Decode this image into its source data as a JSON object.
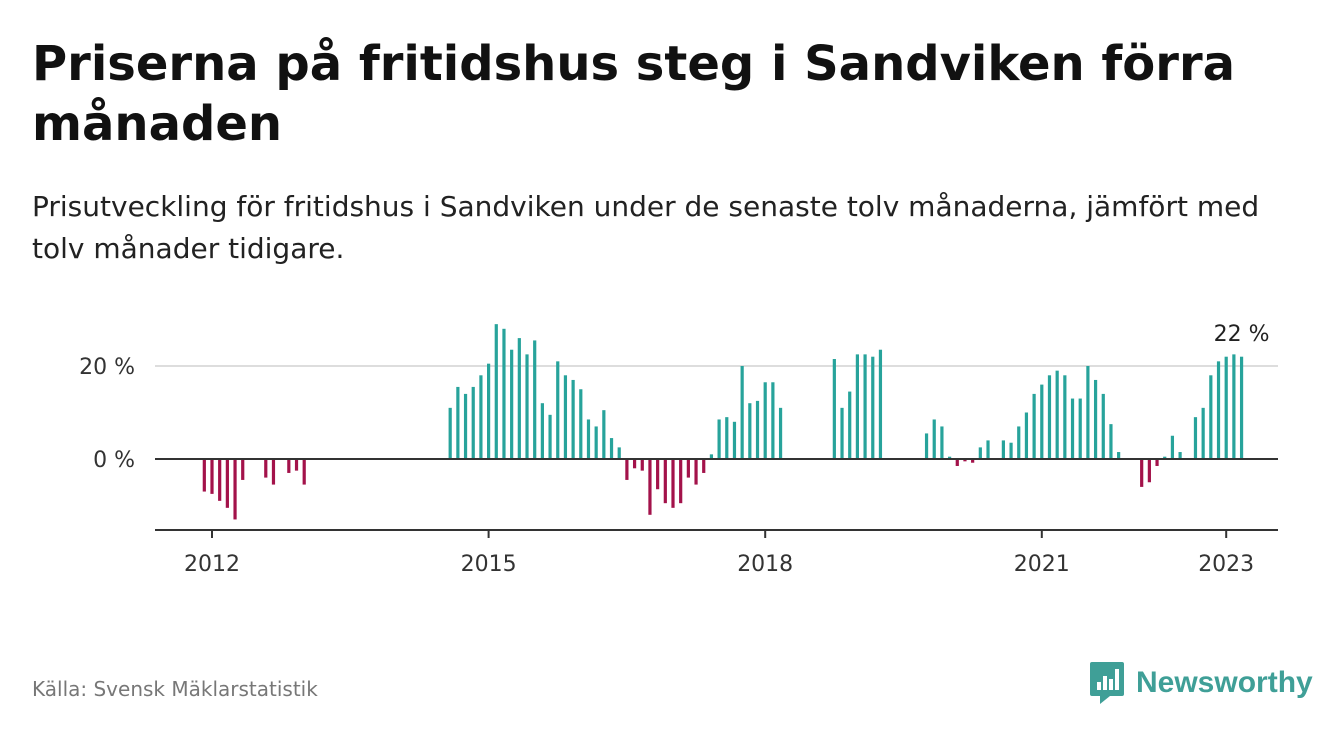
{
  "header": {
    "title": "Priserna på fritidshus steg i Sandviken förra månaden",
    "subtitle": "Prisutveckling för fritidshus i Sandviken under de senaste tolv månaderna, jämfört med tolv månader tidigare."
  },
  "footer": {
    "source": "Källa: Svensk Mäklarstatistik",
    "brand": "Newsworthy"
  },
  "colors": {
    "positive": "#27a39b",
    "negative": "#a3124a",
    "brand": "#3f9f97"
  },
  "icons": {
    "brand_logo": "bar-chart-icon"
  },
  "chart_data": {
    "type": "bar",
    "y_unit": "%",
    "ylim": [
      -14,
      30
    ],
    "y_ticks": [
      0,
      20
    ],
    "y_tick_labels": [
      "0 %",
      "20 %"
    ],
    "x_ticks": [
      2012,
      2015,
      2018,
      2021,
      2023
    ],
    "grid": "horizontal",
    "last_value_label": "22 %",
    "series": [
      {
        "points": [
          {
            "x": "2011-12",
            "y": -7
          },
          {
            "x": "2012-01",
            "y": -7.5
          },
          {
            "x": "2012-02",
            "y": -9
          },
          {
            "x": "2012-03",
            "y": -10.5
          },
          {
            "x": "2012-04",
            "y": -13
          },
          {
            "x": "2012-05",
            "y": -4.5
          },
          {
            "x": "2012-08",
            "y": -4
          },
          {
            "x": "2012-09",
            "y": -5.5
          },
          {
            "x": "2012-11",
            "y": -3
          },
          {
            "x": "2012-12",
            "y": -2.5
          },
          {
            "x": "2013-01",
            "y": -5.5
          },
          {
            "x": "2014-08",
            "y": 11
          },
          {
            "x": "2014-09",
            "y": 15.5
          },
          {
            "x": "2014-10",
            "y": 14
          },
          {
            "x": "2014-11",
            "y": 15.5
          },
          {
            "x": "2014-12",
            "y": 18
          },
          {
            "x": "2015-01",
            "y": 20.5
          },
          {
            "x": "2015-02",
            "y": 29
          },
          {
            "x": "2015-03",
            "y": 28
          },
          {
            "x": "2015-04",
            "y": 23.5
          },
          {
            "x": "2015-05",
            "y": 26
          },
          {
            "x": "2015-06",
            "y": 22.5
          },
          {
            "x": "2015-07",
            "y": 25.5
          },
          {
            "x": "2015-08",
            "y": 12
          },
          {
            "x": "2015-09",
            "y": 9.5
          },
          {
            "x": "2015-10",
            "y": 21
          },
          {
            "x": "2015-11",
            "y": 18
          },
          {
            "x": "2015-12",
            "y": 17
          },
          {
            "x": "2016-01",
            "y": 15
          },
          {
            "x": "2016-02",
            "y": 8.5
          },
          {
            "x": "2016-03",
            "y": 7
          },
          {
            "x": "2016-04",
            "y": 10.5
          },
          {
            "x": "2016-05",
            "y": 4.5
          },
          {
            "x": "2016-06",
            "y": 2.5
          },
          {
            "x": "2016-07",
            "y": -4.5
          },
          {
            "x": "2016-08",
            "y": -2
          },
          {
            "x": "2016-09",
            "y": -2.5
          },
          {
            "x": "2016-10",
            "y": -12
          },
          {
            "x": "2016-11",
            "y": -6.5
          },
          {
            "x": "2016-12",
            "y": -9.5
          },
          {
            "x": "2017-01",
            "y": -10.5
          },
          {
            "x": "2017-02",
            "y": -9.5
          },
          {
            "x": "2017-03",
            "y": -4
          },
          {
            "x": "2017-04",
            "y": -5.5
          },
          {
            "x": "2017-05",
            "y": -3
          },
          {
            "x": "2017-06",
            "y": 1
          },
          {
            "x": "2017-07",
            "y": 8.5
          },
          {
            "x": "2017-08",
            "y": 9
          },
          {
            "x": "2017-09",
            "y": 8
          },
          {
            "x": "2017-10",
            "y": 20
          },
          {
            "x": "2017-11",
            "y": 12
          },
          {
            "x": "2017-12",
            "y": 12.5
          },
          {
            "x": "2018-01",
            "y": 16.5
          },
          {
            "x": "2018-02",
            "y": 16.5
          },
          {
            "x": "2018-03",
            "y": 11
          },
          {
            "x": "2018-10",
            "y": 21.5
          },
          {
            "x": "2018-11",
            "y": 11
          },
          {
            "x": "2018-12",
            "y": 14.5
          },
          {
            "x": "2019-01",
            "y": 22.5
          },
          {
            "x": "2019-02",
            "y": 22.5
          },
          {
            "x": "2019-03",
            "y": 22
          },
          {
            "x": "2019-04",
            "y": 23.5
          },
          {
            "x": "2019-10",
            "y": 5.5
          },
          {
            "x": "2019-11",
            "y": 8.5
          },
          {
            "x": "2019-12",
            "y": 7
          },
          {
            "x": "2020-01",
            "y": 0.5
          },
          {
            "x": "2020-02",
            "y": -1.5
          },
          {
            "x": "2020-03",
            "y": -0.5
          },
          {
            "x": "2020-04",
            "y": -0.8
          },
          {
            "x": "2020-05",
            "y": 2.5
          },
          {
            "x": "2020-06",
            "y": 4
          },
          {
            "x": "2020-08",
            "y": 4
          },
          {
            "x": "2020-09",
            "y": 3.5
          },
          {
            "x": "2020-10",
            "y": 7
          },
          {
            "x": "2020-11",
            "y": 10
          },
          {
            "x": "2020-12",
            "y": 14
          },
          {
            "x": "2021-01",
            "y": 16
          },
          {
            "x": "2021-02",
            "y": 18
          },
          {
            "x": "2021-03",
            "y": 19
          },
          {
            "x": "2021-04",
            "y": 18
          },
          {
            "x": "2021-05",
            "y": 13
          },
          {
            "x": "2021-06",
            "y": 13
          },
          {
            "x": "2021-07",
            "y": 20
          },
          {
            "x": "2021-08",
            "y": 17
          },
          {
            "x": "2021-09",
            "y": 14
          },
          {
            "x": "2021-10",
            "y": 7.5
          },
          {
            "x": "2021-11",
            "y": 1.5
          },
          {
            "x": "2022-02",
            "y": -6
          },
          {
            "x": "2022-03",
            "y": -5
          },
          {
            "x": "2022-04",
            "y": -1.5
          },
          {
            "x": "2022-05",
            "y": 0.5
          },
          {
            "x": "2022-06",
            "y": 5
          },
          {
            "x": "2022-07",
            "y": 1.5
          },
          {
            "x": "2022-09",
            "y": 9
          },
          {
            "x": "2022-10",
            "y": 11
          },
          {
            "x": "2022-11",
            "y": 18
          },
          {
            "x": "2022-12",
            "y": 21
          },
          {
            "x": "2023-01",
            "y": 22
          },
          {
            "x": "2023-02",
            "y": 22.5
          },
          {
            "x": "2023-03",
            "y": 22
          }
        ]
      }
    ]
  }
}
